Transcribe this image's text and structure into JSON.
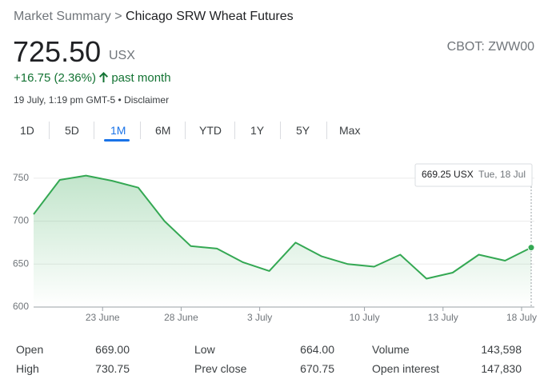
{
  "breadcrumb": {
    "parent": "Market Summary",
    "separator": ">",
    "current": "Chicago SRW Wheat Futures"
  },
  "quote": {
    "price": "725.50",
    "unit": "USX",
    "exchange": "CBOT: ZWW00",
    "change": "+16.75 (2.36%)",
    "period": "past month",
    "timestamp": "19 July, 1:19 pm GMT-5",
    "separator": "•",
    "disclaimer": "Disclaimer"
  },
  "tabs": {
    "items": [
      "1D",
      "5D",
      "1M",
      "6M",
      "YTD",
      "1Y",
      "5Y",
      "Max"
    ],
    "active": 2
  },
  "chart_data": {
    "type": "line",
    "categories": [
      null,
      null,
      null,
      "23 June",
      null,
      null,
      "28 June",
      null,
      null,
      "3 July",
      null,
      null,
      null,
      "10 July",
      null,
      null,
      "13 July",
      null,
      null,
      "18 July"
    ],
    "series": [
      {
        "name": "Chicago SRW Wheat Futures",
        "color": "#34a853",
        "values": [
          708,
          748,
          753,
          747,
          739,
          700,
          671,
          668,
          652,
          642,
          675,
          659,
          650,
          647,
          661,
          633,
          640,
          661,
          654,
          669.25
        ]
      }
    ],
    "ylim": [
      600,
      775
    ],
    "yticks": [
      600,
      650,
      700,
      750
    ],
    "grid": true,
    "tooltip": {
      "value": "669.25 USX",
      "date": "Tue, 18 Jul"
    }
  },
  "stats": [
    [
      "Open",
      "669.00"
    ],
    [
      "High",
      "730.75"
    ],
    [
      "Low",
      "664.00"
    ],
    [
      "Prev close",
      "670.75"
    ],
    [
      "Volume",
      "143,598"
    ],
    [
      "Open interest",
      "147,830"
    ]
  ]
}
